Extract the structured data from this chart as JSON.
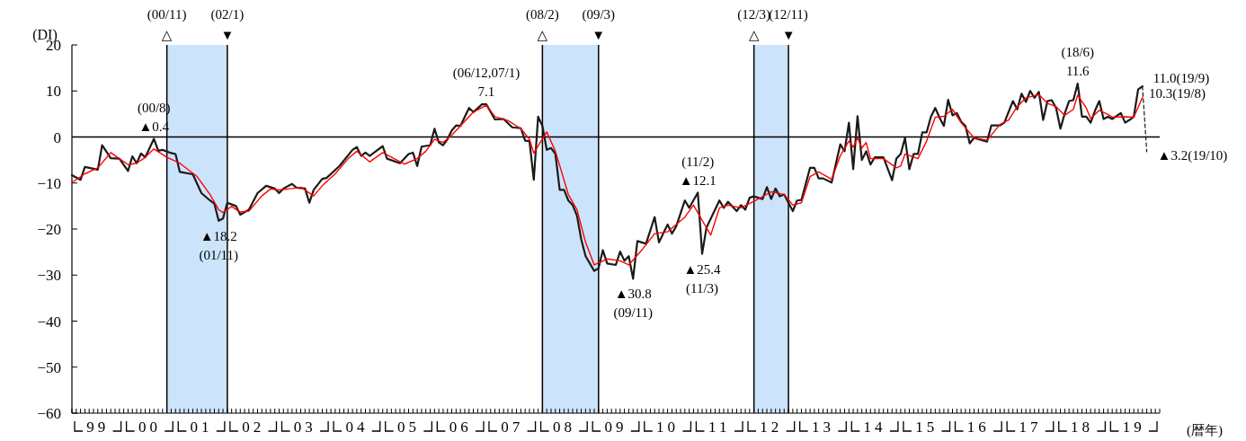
{
  "chart_data": {
    "type": "line",
    "ylabel": "(DI)",
    "xlabel": "(暦年)",
    "xlim": [
      "1999-01",
      "2020-01"
    ],
    "ylim": [
      -60,
      20
    ],
    "yticks": [
      -60,
      -50,
      -40,
      -30,
      -20,
      -10,
      0,
      10,
      20
    ],
    "xticks": [
      {
        "value": "1999-01",
        "label": null
      },
      {
        "value": "1999-07",
        "label": "99"
      },
      {
        "value": "2000-01",
        "label": null
      },
      {
        "value": "2000-07",
        "label": "00"
      },
      {
        "value": "2001-01",
        "label": null
      },
      {
        "value": "2001-07",
        "label": "01"
      },
      {
        "value": "2002-01",
        "label": null
      },
      {
        "value": "2002-07",
        "label": "02"
      },
      {
        "value": "2003-01",
        "label": null
      },
      {
        "value": "2003-07",
        "label": "03"
      },
      {
        "value": "2004-01",
        "label": null
      },
      {
        "value": "2004-07",
        "label": "04"
      },
      {
        "value": "2005-01",
        "label": null
      },
      {
        "value": "2005-07",
        "label": "05"
      },
      {
        "value": "2006-01",
        "label": null
      },
      {
        "value": "2006-07",
        "label": "06"
      },
      {
        "value": "2007-01",
        "label": null
      },
      {
        "value": "2007-07",
        "label": "07"
      },
      {
        "value": "2008-01",
        "label": null
      },
      {
        "value": "2008-07",
        "label": "08"
      },
      {
        "value": "2009-01",
        "label": null
      },
      {
        "value": "2009-07",
        "label": "09"
      },
      {
        "value": "2010-01",
        "label": null
      },
      {
        "value": "2010-07",
        "label": "10"
      },
      {
        "value": "2011-01",
        "label": null
      },
      {
        "value": "2011-07",
        "label": "11"
      },
      {
        "value": "2012-01",
        "label": null
      },
      {
        "value": "2012-07",
        "label": "12"
      },
      {
        "value": "2013-01",
        "label": null
      },
      {
        "value": "2013-07",
        "label": "13"
      },
      {
        "value": "2014-01",
        "label": null
      },
      {
        "value": "2014-07",
        "label": "14"
      },
      {
        "value": "2015-01",
        "label": null
      },
      {
        "value": "2015-07",
        "label": "15"
      },
      {
        "value": "2016-01",
        "label": null
      },
      {
        "value": "2016-07",
        "label": "16"
      },
      {
        "value": "2017-01",
        "label": null
      },
      {
        "value": "2017-07",
        "label": "17"
      },
      {
        "value": "2018-01",
        "label": null
      },
      {
        "value": "2018-07",
        "label": "18"
      },
      {
        "value": "2019-01",
        "label": null
      },
      {
        "value": "2019-07",
        "label": "19"
      },
      {
        "value": "2020-01",
        "label": null
      }
    ],
    "series": [
      {
        "color": "#1a1a1a",
        "x": [
          "1999-01",
          "1999-03",
          "1999-04",
          "1999-07",
          "1999-08",
          "1999-10",
          "1999-12",
          "2000-02",
          "2000-03",
          "2000-04",
          "2000-05",
          "2000-06",
          "2000-08",
          "2000-09",
          "2000-10",
          "2000-12",
          "2001-01",
          "2001-02",
          "2001-05",
          "2001-07",
          "2001-09",
          "2001-10",
          "2001-11",
          "2001-12",
          "2002-01",
          "2002-03",
          "2002-04",
          "2002-06",
          "2002-08",
          "2002-10",
          "2002-12",
          "2003-01",
          "2003-02",
          "2003-04",
          "2003-05",
          "2003-07",
          "2003-08",
          "2003-09",
          "2003-11",
          "2003-12",
          "2004-03",
          "2004-06",
          "2004-07",
          "2004-08",
          "2004-09",
          "2004-10",
          "2004-11",
          "2005-01",
          "2005-02",
          "2005-05",
          "2005-07",
          "2005-08",
          "2005-09",
          "2005-10",
          "2005-12",
          "2006-01",
          "2006-02",
          "2006-03",
          "2006-04",
          "2006-05",
          "2006-06",
          "2006-07",
          "2006-09",
          "2006-10",
          "2006-12",
          "2007-01",
          "2007-03",
          "2007-05",
          "2007-07",
          "2007-09",
          "2007-10",
          "2007-11",
          "2007-12",
          "2008-01",
          "2008-02",
          "2008-03",
          "2008-04",
          "2008-05",
          "2008-06",
          "2008-07",
          "2008-08",
          "2008-09",
          "2008-10",
          "2008-11",
          "2008-12",
          "2009-02",
          "2009-03",
          "2009-04",
          "2009-05",
          "2009-07",
          "2009-08",
          "2009-09",
          "2009-10",
          "2009-11",
          "2009-12",
          "2010-02",
          "2010-04",
          "2010-05",
          "2010-07",
          "2010-08",
          "2010-09",
          "2010-11",
          "2010-12",
          "2011-02",
          "2011-03",
          "2011-04",
          "2011-07",
          "2011-08",
          "2011-09",
          "2011-11",
          "2011-12",
          "2012-01",
          "2012-02",
          "2012-03",
          "2012-05",
          "2012-06",
          "2012-07",
          "2012-08",
          "2012-09",
          "2012-10",
          "2012-12",
          "2013-01",
          "2013-02",
          "2013-04",
          "2013-05",
          "2013-06",
          "2013-07",
          "2013-09",
          "2013-11",
          "2013-12",
          "2014-01",
          "2014-02",
          "2014-03",
          "2014-04",
          "2014-05",
          "2014-06",
          "2014-07",
          "2014-09",
          "2014-11",
          "2014-12",
          "2015-01",
          "2015-02",
          "2015-03",
          "2015-04",
          "2015-05",
          "2015-06",
          "2015-07",
          "2015-08",
          "2015-09",
          "2015-10",
          "2015-11",
          "2015-12",
          "2016-01",
          "2016-02",
          "2016-03",
          "2016-04",
          "2016-05",
          "2016-06",
          "2016-07",
          "2016-09",
          "2016-10",
          "2016-12",
          "2017-01",
          "2017-03",
          "2017-04",
          "2017-05",
          "2017-06",
          "2017-07",
          "2017-08",
          "2017-09",
          "2017-10",
          "2017-11",
          "2017-12",
          "2018-01",
          "2018-02",
          "2018-03",
          "2018-04",
          "2018-05",
          "2018-06",
          "2018-07",
          "2018-08",
          "2018-09",
          "2018-10",
          "2018-11",
          "2018-12",
          "2019-01",
          "2019-02",
          "2019-04",
          "2019-05",
          "2019-06",
          "2019-07",
          "2019-08",
          "2019-09"
        ],
        "values": [
          -8.3,
          -9.3,
          -6.5,
          -7.1,
          -1.8,
          -4.6,
          -4.7,
          -7.4,
          -4.2,
          -5.7,
          -3.6,
          -4.4,
          -0.4,
          -3.0,
          -2.8,
          -3.5,
          -3.7,
          -7.6,
          -8.1,
          -12.2,
          -13.8,
          -14.5,
          -18.2,
          -17.7,
          -14.3,
          -15.0,
          -16.9,
          -15.8,
          -12.2,
          -10.6,
          -11.2,
          -12.2,
          -11.2,
          -10.2,
          -11.0,
          -11.2,
          -14.3,
          -11.5,
          -9.1,
          -8.9,
          -6.3,
          -2.8,
          -2.2,
          -4.1,
          -3.4,
          -4.1,
          -3.4,
          -2.0,
          -4.7,
          -5.7,
          -3.7,
          -3.4,
          -6.3,
          -2.1,
          -1.8,
          1.8,
          -1.2,
          -1.8,
          -0.5,
          1.4,
          2.5,
          2.4,
          6.3,
          5.4,
          7.1,
          7.1,
          3.8,
          3.9,
          2.1,
          1.9,
          -0.8,
          -0.9,
          -9.3,
          4.4,
          2.4,
          -2.8,
          -2.4,
          -3.7,
          -11.5,
          -11.5,
          -13.8,
          -14.8,
          -17.1,
          -22.3,
          -25.9,
          -29.1,
          -28.5,
          -24.6,
          -27.5,
          -27.8,
          -24.9,
          -26.9,
          -25.9,
          -30.8,
          -22.6,
          -23.2,
          -17.4,
          -22.9,
          -19.0,
          -21.0,
          -19.4,
          -13.8,
          -15.4,
          -12.1,
          -25.4,
          -19.7,
          -13.8,
          -15.4,
          -14.1,
          -16.1,
          -14.8,
          -15.8,
          -13.2,
          -12.9,
          -13.5,
          -10.9,
          -13.5,
          -11.2,
          -12.9,
          -12.5,
          -16.1,
          -13.8,
          -13.7,
          -6.7,
          -6.7,
          -9.0,
          -9.0,
          -9.9,
          -1.6,
          -3.1,
          3.1,
          -7.0,
          4.5,
          -5.0,
          -3.1,
          -6.0,
          -4.4,
          -4.4,
          -9.4,
          -4.7,
          -3.7,
          -0.2,
          -7.0,
          -3.7,
          -3.7,
          1.0,
          1.0,
          4.4,
          6.3,
          4.2,
          2.4,
          8.1,
          4.7,
          5.2,
          3.3,
          2.4,
          -1.4,
          -0.2,
          -0.5,
          -1.0,
          2.5,
          2.5,
          3.1,
          7.8,
          6.0,
          9.4,
          7.6,
          10.0,
          8.5,
          9.8,
          3.7,
          7.8,
          8.0,
          6.3,
          1.8,
          5.1,
          7.8,
          8.0,
          11.6,
          4.4,
          4.4,
          3.1,
          5.7,
          7.8,
          3.9,
          4.4,
          3.9,
          5.2,
          3.1,
          3.7,
          4.4,
          10.3,
          11.0
        ]
      },
      {
        "color": "#ff0000",
        "x": [
          "1999-01",
          "1999-04",
          "1999-07",
          "1999-10",
          "1999-12",
          "2000-02",
          "2000-04",
          "2000-06",
          "2000-08",
          "2000-11",
          "2001-02",
          "2001-06",
          "2001-09",
          "2001-11",
          "2001-12",
          "2002-02",
          "2002-04",
          "2002-06",
          "2002-09",
          "2002-11",
          "2003-01",
          "2003-04",
          "2003-06",
          "2003-09",
          "2003-11",
          "2004-02",
          "2004-05",
          "2004-07",
          "2004-10",
          "2005-01",
          "2005-06",
          "2005-09",
          "2005-11",
          "2006-01",
          "2006-03",
          "2006-05",
          "2006-10",
          "2007-01",
          "2007-03",
          "2007-06",
          "2007-09",
          "2007-11",
          "2007-12",
          "2008-03",
          "2008-05",
          "2008-08",
          "2008-10",
          "2008-12",
          "2009-02",
          "2009-05",
          "2009-08",
          "2009-10",
          "2010-01",
          "2010-04",
          "2010-07",
          "2010-11",
          "2011-01",
          "2011-03",
          "2011-05",
          "2011-07",
          "2011-09",
          "2011-12",
          "2012-04",
          "2012-07",
          "2012-10",
          "2012-12",
          "2013-02",
          "2013-04",
          "2013-06",
          "2013-09",
          "2013-11",
          "2014-01",
          "2014-02",
          "2014-03",
          "2014-04",
          "2014-05",
          "2014-06",
          "2014-09",
          "2014-12",
          "2015-01",
          "2015-02",
          "2015-05",
          "2015-07",
          "2015-09",
          "2015-11",
          "2016-01",
          "2016-03",
          "2016-06",
          "2016-09",
          "2016-12",
          "2017-02",
          "2017-04",
          "2017-06",
          "2017-09",
          "2017-11",
          "2018-01",
          "2018-03",
          "2018-05",
          "2018-06",
          "2018-08",
          "2018-09",
          "2018-11",
          "2019-01",
          "2019-02",
          "2019-05",
          "2019-07",
          "2019-09"
        ],
        "values": [
          -9.9,
          -8.0,
          -6.7,
          -3.4,
          -4.7,
          -6.0,
          -5.7,
          -4.4,
          -2.6,
          -4.4,
          -5.7,
          -8.6,
          -12.5,
          -15.8,
          -16.4,
          -15.1,
          -16.3,
          -16.1,
          -12.8,
          -11.3,
          -11.5,
          -11.2,
          -10.9,
          -12.8,
          -10.6,
          -8.0,
          -4.7,
          -3.1,
          -5.4,
          -3.4,
          -5.9,
          -4.7,
          -3.1,
          -0.5,
          -1.2,
          0.4,
          5.4,
          6.9,
          4.4,
          3.6,
          1.8,
          -0.5,
          -3.5,
          1.1,
          -3.1,
          -12.5,
          -15.8,
          -22.9,
          -27.8,
          -26.5,
          -26.9,
          -27.8,
          -24.6,
          -21.0,
          -20.6,
          -17.4,
          -14.8,
          -18.1,
          -21.3,
          -15.4,
          -14.8,
          -15.4,
          -13.5,
          -11.9,
          -12.5,
          -14.8,
          -14.3,
          -8.6,
          -7.6,
          -9.2,
          -4.1,
          -0.9,
          -2.2,
          -0.2,
          -2.4,
          -1.2,
          -4.7,
          -4.7,
          -6.7,
          -6.3,
          -3.7,
          -4.7,
          -0.9,
          4.3,
          4.5,
          6.0,
          3.1,
          -0.2,
          -0.7,
          2.7,
          3.7,
          6.6,
          8.5,
          9.2,
          7.3,
          6.6,
          4.7,
          6.0,
          9.1,
          6.3,
          4.0,
          5.8,
          4.9,
          4.3,
          4.4,
          4.3,
          8.6
        ]
      },
      {
        "color": "#1a1a1a",
        "line_style": "dashed",
        "x": [
          "2019-09",
          "2019-10"
        ],
        "values": [
          11.0,
          -3.2
        ]
      }
    ],
    "ref_lines": [
      {
        "axis": "y",
        "value": 0,
        "color": "#000000"
      }
    ],
    "bands": [
      {
        "axis": "x",
        "from": "2000-11",
        "to": "2002-01",
        "color": "#cce4fb"
      },
      {
        "axis": "x",
        "from": "2008-02",
        "to": "2009-03",
        "color": "#cce4fb"
      },
      {
        "axis": "x",
        "from": "2012-03",
        "to": "2012-11",
        "color": "#cce4fb"
      }
    ],
    "annotations": [
      {
        "text": "(00/11)\n△",
        "x": "2000-11",
        "y": 20
      },
      {
        "text": "(02/1)\n▼",
        "x": "2002-01",
        "y": 20
      },
      {
        "text": "(08/2)\n△",
        "x": "2008-02",
        "y": 20
      },
      {
        "text": "(09/3)\n▼",
        "x": "2009-03",
        "y": 20
      },
      {
        "text": "(12/3)\n△",
        "x": "2012-03",
        "y": 20
      },
      {
        "text": "(12/11)\n▼",
        "x": "2012-11",
        "y": 20
      },
      {
        "text": "(00/8)\n▲0.4",
        "x": "2000-08",
        "y": -0.4
      },
      {
        "text": "▲18.2\n(01/11)",
        "x": "2001-11",
        "y": -18.2
      },
      {
        "text": "(06/12,07/1)\n7.1",
        "x": "2007-01",
        "y": 7.1
      },
      {
        "text": "▲30.8\n(09/11)",
        "x": "2009-11",
        "y": -30.8
      },
      {
        "text": "(11/2)\n▲12.1",
        "x": "2011-02",
        "y": -12.1
      },
      {
        "text": "▲25.4\n(11/3)",
        "x": "2011-03",
        "y": -25.4
      },
      {
        "text": "(18/6)\n11.6",
        "x": "2018-06",
        "y": 11.6
      },
      {
        "text": "11.0(19/9)",
        "x": "2019-09",
        "y": 11.0
      },
      {
        "text": "10.3(19/8)",
        "x": "2019-08",
        "y": 10.3
      },
      {
        "text": "▲3.2(19/10)",
        "x": "2019-10",
        "y": -3.2
      }
    ]
  }
}
